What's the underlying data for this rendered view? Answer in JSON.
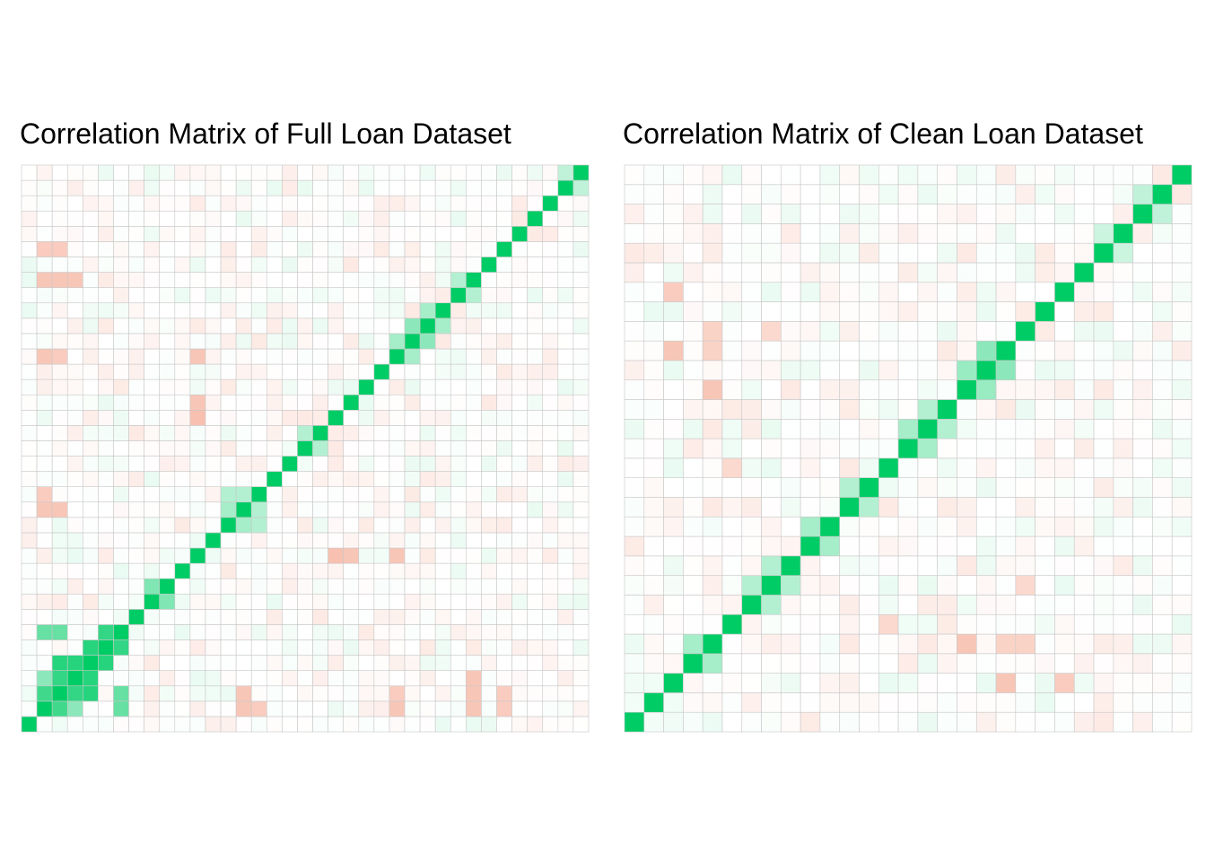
{
  "chart_data": [
    {
      "type": "heatmap",
      "title": "Correlation Matrix of Full Loan Dataset",
      "n_vars": 37,
      "row_labels": [],
      "col_labels": [],
      "xlabel": "",
      "ylabel": "",
      "value_range": [
        -1,
        1
      ],
      "diagonal_value": 1,
      "grid": true,
      "notable_correlations": [
        {
          "row": 1,
          "col": 2,
          "value": 0.75
        },
        {
          "row": 1,
          "col": 3,
          "value": 0.45
        },
        {
          "row": 2,
          "col": 3,
          "value": 0.8
        },
        {
          "row": 2,
          "col": 4,
          "value": 0.85
        },
        {
          "row": 3,
          "col": 4,
          "value": 0.85
        },
        {
          "row": 4,
          "col": 5,
          "value": 0.85
        },
        {
          "row": 5,
          "col": 6,
          "value": 0.8
        },
        {
          "row": 1,
          "col": 6,
          "value": 0.6
        },
        {
          "row": 2,
          "col": 6,
          "value": 0.6
        },
        {
          "row": 8,
          "col": 9,
          "value": 0.5
        },
        {
          "row": 13,
          "col": 14,
          "value": 0.35
        },
        {
          "row": 13,
          "col": 15,
          "value": 0.3
        },
        {
          "row": 14,
          "col": 15,
          "value": 0.3
        },
        {
          "row": 18,
          "col": 19,
          "value": 0.3
        },
        {
          "row": 24,
          "col": 25,
          "value": 0.35
        },
        {
          "row": 25,
          "col": 26,
          "value": 0.45
        },
        {
          "row": 26,
          "col": 27,
          "value": 0.35
        },
        {
          "row": 28,
          "col": 29,
          "value": 0.3
        },
        {
          "row": 35,
          "col": 36,
          "value": 0.25
        },
        {
          "row": 1,
          "col": 14,
          "value": -0.45
        },
        {
          "row": 2,
          "col": 14,
          "value": -0.45
        },
        {
          "row": 1,
          "col": 15,
          "value": -0.4
        },
        {
          "row": 1,
          "col": 24,
          "value": -0.45
        },
        {
          "row": 2,
          "col": 24,
          "value": -0.4
        },
        {
          "row": 1,
          "col": 29,
          "value": -0.45
        },
        {
          "row": 2,
          "col": 29,
          "value": -0.45
        },
        {
          "row": 3,
          "col": 29,
          "value": -0.45
        },
        {
          "row": 1,
          "col": 31,
          "value": -0.4
        },
        {
          "row": 2,
          "col": 31,
          "value": -0.4
        },
        {
          "row": 11,
          "col": 20,
          "value": -0.5
        },
        {
          "row": 21,
          "col": 11,
          "value": -0.45
        },
        {
          "row": 24,
          "col": 11,
          "value": -0.45
        }
      ]
    },
    {
      "type": "heatmap",
      "title": "Correlation Matrix of Clean Loan Dataset",
      "n_vars": 29,
      "row_labels": [],
      "col_labels": [],
      "xlabel": "",
      "ylabel": "",
      "value_range": [
        -1,
        1
      ],
      "diagonal_value": 1,
      "grid": true,
      "notable_correlations": [
        {
          "row": 3,
          "col": 4,
          "value": 0.35
        },
        {
          "row": 6,
          "col": 7,
          "value": 0.3
        },
        {
          "row": 7,
          "col": 8,
          "value": 0.3
        },
        {
          "row": 9,
          "col": 10,
          "value": 0.35
        },
        {
          "row": 11,
          "col": 12,
          "value": 0.3
        },
        {
          "row": 14,
          "col": 15,
          "value": 0.35
        },
        {
          "row": 15,
          "col": 16,
          "value": 0.3
        },
        {
          "row": 17,
          "col": 18,
          "value": 0.4
        },
        {
          "row": 18,
          "col": 19,
          "value": 0.45
        },
        {
          "row": 24,
          "col": 25,
          "value": 0.2
        },
        {
          "row": 26,
          "col": 27,
          "value": 0.25
        },
        {
          "row": 2,
          "col": 19,
          "value": -0.45
        },
        {
          "row": 2,
          "col": 22,
          "value": -0.4
        },
        {
          "row": 4,
          "col": 17,
          "value": -0.45
        },
        {
          "row": 4,
          "col": 20,
          "value": -0.35
        },
        {
          "row": 7,
          "col": 20,
          "value": -0.3
        },
        {
          "row": 13,
          "col": 5,
          "value": -0.3
        },
        {
          "row": 19,
          "col": 4,
          "value": -0.35
        }
      ]
    }
  ],
  "colors": {
    "positive": "#00CC66",
    "negative": "#F08060",
    "neutral": "#FFFFFF",
    "grid": "#C8C8C8"
  }
}
